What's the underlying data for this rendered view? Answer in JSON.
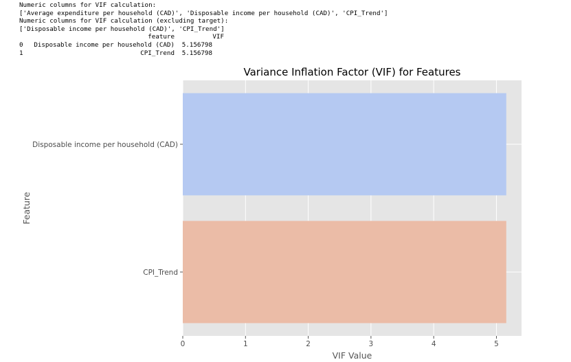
{
  "output": {
    "lines": [
      "Numeric columns for VIF calculation:",
      "['Average expenditure per household (CAD)', 'Disposable income per household (CAD)', 'CPI_Trend']",
      "Numeric columns for VIF calculation (excluding target):",
      "['Disposable income per household (CAD)', 'CPI_Trend']"
    ],
    "table": {
      "columns": [
        "feature",
        "VIF"
      ],
      "rows": [
        {
          "index": "0",
          "feature": "Disposable income per household (CAD)",
          "vif": "5.156798"
        },
        {
          "index": "1",
          "feature": "CPI_Trend",
          "vif": "5.156798"
        }
      ]
    }
  },
  "chart_data": {
    "type": "bar",
    "orientation": "horizontal",
    "title": "Variance Inflation Factor (VIF) for Features",
    "xlabel": "VIF Value",
    "ylabel": "Feature",
    "categories": [
      "Disposable income per household (CAD)",
      "CPI_Trend"
    ],
    "values": [
      5.156798,
      5.156798
    ],
    "colors": [
      "#b5c9f2",
      "#ebbca7"
    ],
    "xlim": [
      0,
      5.4
    ],
    "xticks": [
      0,
      1,
      2,
      3,
      4,
      5
    ],
    "grid": true,
    "style": "ggplot",
    "background_color": "#e5e5e5",
    "grid_color": "#ffffff"
  }
}
